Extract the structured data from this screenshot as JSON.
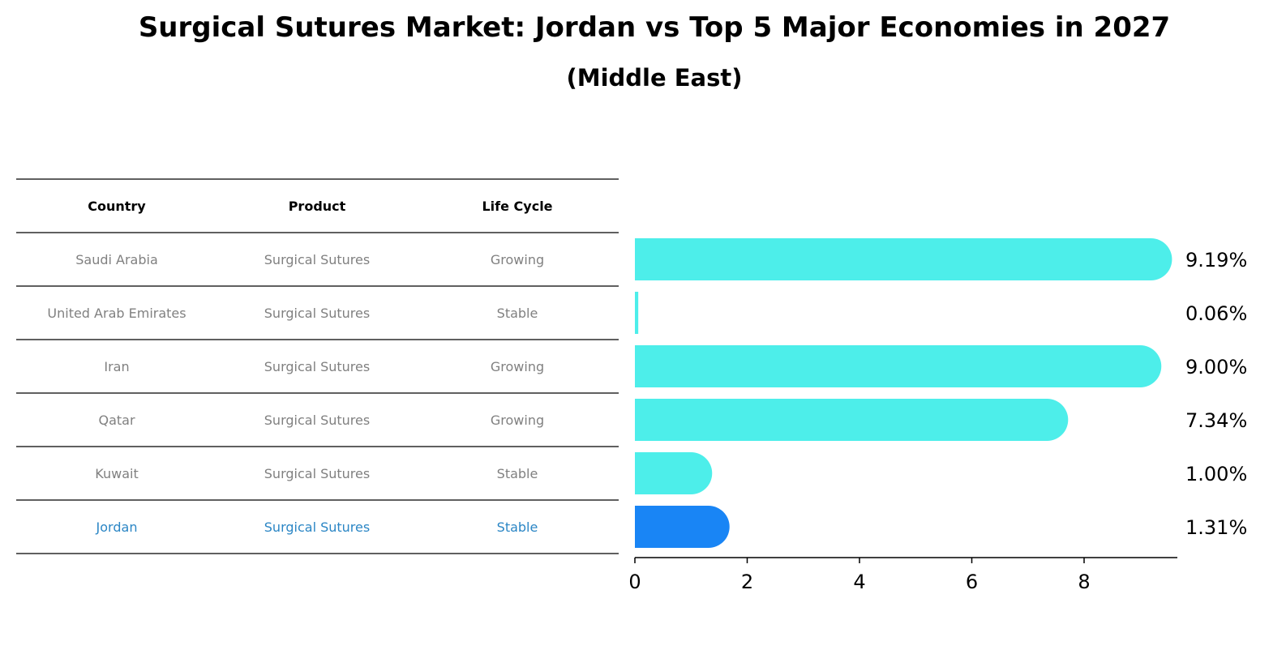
{
  "chart_data": {
    "type": "bar",
    "title": "Surgical Sutures Market: Jordan vs Top 5 Major Economies in 2027",
    "subtitle": "(Middle East)",
    "table": {
      "headers": [
        "Country",
        "Product",
        "Life Cycle"
      ],
      "rows": [
        {
          "country": "Saudi Arabia",
          "product": "Surgical Sutures",
          "life_cycle": "Growing",
          "highlight": false
        },
        {
          "country": "United Arab Emirates",
          "product": "Surgical Sutures",
          "life_cycle": "Stable",
          "highlight": false
        },
        {
          "country": "Iran",
          "product": "Surgical Sutures",
          "life_cycle": "Growing",
          "highlight": false
        },
        {
          "country": "Qatar",
          "product": "Surgical Sutures",
          "life_cycle": "Growing",
          "highlight": false
        },
        {
          "country": "Kuwait",
          "product": "Surgical Sutures",
          "life_cycle": "Stable",
          "highlight": false
        },
        {
          "country": "Jordan",
          "product": "Surgical Sutures",
          "life_cycle": "Stable",
          "highlight": true
        }
      ]
    },
    "categories": [
      "Saudi Arabia",
      "United Arab Emirates",
      "Iran",
      "Qatar",
      "Kuwait",
      "Jordan"
    ],
    "values": [
      9.19,
      0.06,
      9.0,
      7.34,
      1.0,
      1.31
    ],
    "value_labels": [
      "9.19%",
      "0.06%",
      "9.00%",
      "7.34%",
      "1.00%",
      "1.31%"
    ],
    "x_ticks": [
      0,
      2,
      4,
      6,
      8
    ],
    "xlim": [
      0,
      9.7
    ],
    "colors": {
      "bar": "#4DEEEA",
      "highlight_bar": "#1985F5",
      "highlight_text": "#2B86C5",
      "table_text": "#808080",
      "line": "#000000"
    }
  }
}
